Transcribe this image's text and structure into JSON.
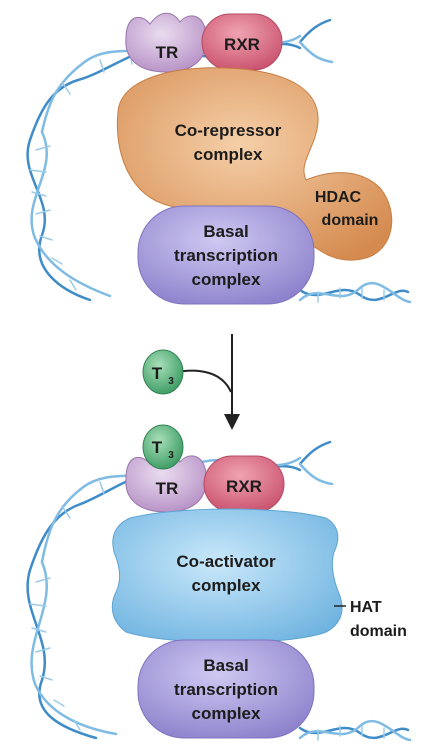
{
  "top_panel": {
    "tr_label": "TR",
    "rxr_label": "RXR",
    "corepressor_line1": "Co-repressor",
    "corepressor_line2": "complex",
    "hdac_line1": "HDAC",
    "hdac_line2": "domain",
    "basal_line1": "Basal",
    "basal_line2": "transcription",
    "basal_line3": "complex"
  },
  "transition": {
    "hormone_base": "T",
    "hormone_sub": "3"
  },
  "bottom_panel": {
    "hormone_base": "T",
    "hormone_sub": "3",
    "tr_label": "TR",
    "rxr_label": "RXR",
    "coactivator_line1": "Co-activator",
    "coactivator_line2": "complex",
    "hat_line1": "HAT",
    "hat_line2": "domain",
    "basal_line1": "Basal",
    "basal_line2": "transcription",
    "basal_line3": "complex"
  },
  "colors": {
    "tr": "#c9a7d4",
    "rxr": "#dd6f86",
    "corepressor": "#e3a575",
    "basal": "#a99fdb",
    "coactivator": "#8cc6ea",
    "hormone": "#4fae77",
    "dna": "#5fa4d6"
  }
}
